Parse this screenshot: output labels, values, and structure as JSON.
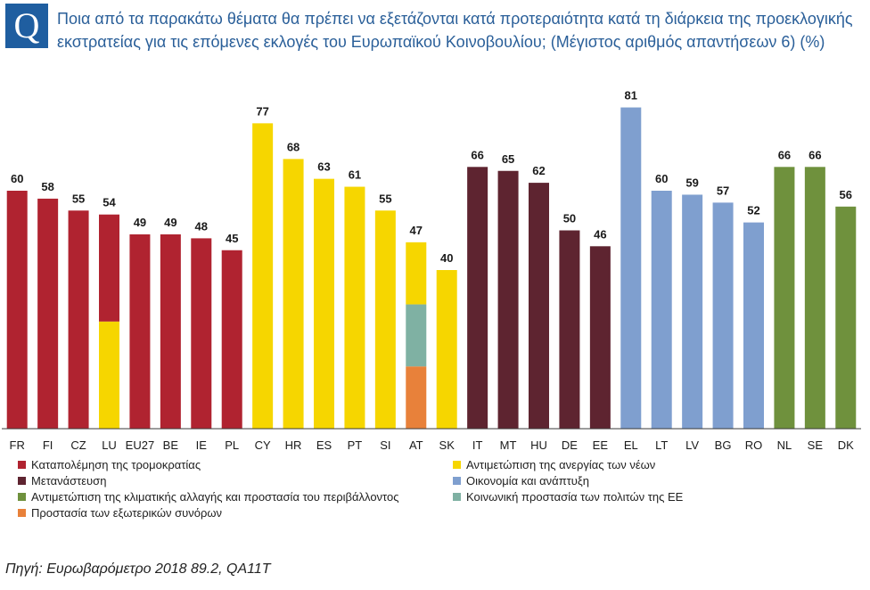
{
  "header": {
    "q_letter": "Q",
    "question": "Ποια από τα παρακάτω θέματα θα πρέπει να εξετάζονται κατά προτεραιότητα κατά τη διάρκεια της προεκλογικής εκστρατείας για τις επόμενες εκλογές του Ευρωπαϊκού Κοινοβουλίου;  (Μέγιστος αριθμός απαντήσεων 6) (%)"
  },
  "colors": {
    "terrorism": "#b02330",
    "youth_unemployment": "#f6d600",
    "migration": "#5e2430",
    "economy": "#7f9fcf",
    "climate": "#6f913d",
    "social_protection": "#7fb1a3",
    "external_borders": "#e8813a",
    "q_box": "#1f5ea0",
    "title": "#2a5f99"
  },
  "chart_data": {
    "type": "bar",
    "title": "Ποια από τα παρακάτω θέματα θα πρέπει να εξετάζονται κατά προτεραιότητα κατά τη διάρκεια της προεκλογικής εκστρατείας για τις επόμενες εκλογές του Ευρωπαϊκού Κοινοβουλίου;  (Μέγιστος αριθμός απαντήσεων 6) (%)",
    "xlabel": "",
    "ylabel": "%",
    "ylim": [
      0,
      81
    ],
    "grid": false,
    "categories": [
      "FR",
      "FI",
      "CZ",
      "LU",
      "EU27",
      "BE",
      "IE",
      "PL",
      "CY",
      "HR",
      "ES",
      "PT",
      "SI",
      "AT",
      "SK",
      "IT",
      "MT",
      "HU",
      "DE",
      "EE",
      "EL",
      "LT",
      "LV",
      "BG",
      "RO",
      "NL",
      "SE",
      "DK"
    ],
    "values": [
      60,
      58,
      55,
      54,
      49,
      49,
      48,
      45,
      77,
      68,
      63,
      61,
      55,
      47,
      40,
      66,
      65,
      62,
      50,
      46,
      81,
      60,
      59,
      57,
      52,
      66,
      66,
      56
    ],
    "top_issue": [
      "terrorism",
      "terrorism",
      "terrorism",
      "terrorism",
      "terrorism",
      "terrorism",
      "terrorism",
      "terrorism",
      "youth_unemployment",
      "youth_unemployment",
      "youth_unemployment",
      "youth_unemployment",
      "youth_unemployment",
      "youth_unemployment",
      "youth_unemployment",
      "migration",
      "migration",
      "migration",
      "migration",
      "migration",
      "economy",
      "economy",
      "economy",
      "economy",
      "economy",
      "climate",
      "climate",
      "climate"
    ],
    "tied_issues": {
      "LU": [
        "terrorism",
        "youth_unemployment"
      ],
      "AT": [
        "youth_unemployment",
        "social_protection",
        "external_borders"
      ]
    },
    "legend": [
      {
        "key": "terrorism",
        "label": "Καταπολέμηση της τρομοκρατίας"
      },
      {
        "key": "youth_unemployment",
        "label": "Αντιμετώπιση της ανεργίας των νέων"
      },
      {
        "key": "migration",
        "label": "Μετανάστευση"
      },
      {
        "key": "economy",
        "label": "Οικονομία και ανάπτυξη"
      },
      {
        "key": "climate",
        "label": "Αντιμετώπιση της κλιματικής αλλαγής και προστασία του περιβάλλοντος"
      },
      {
        "key": "social_protection",
        "label": "Κοινωνική προστασία των πολιτών της ΕΕ"
      },
      {
        "key": "external_borders",
        "label": "Προστασία των εξωτερικών συνόρων"
      }
    ]
  },
  "footer": {
    "source": "Πηγή: Ευρωβαρόμετρο 2018 89.2, QA11T"
  }
}
